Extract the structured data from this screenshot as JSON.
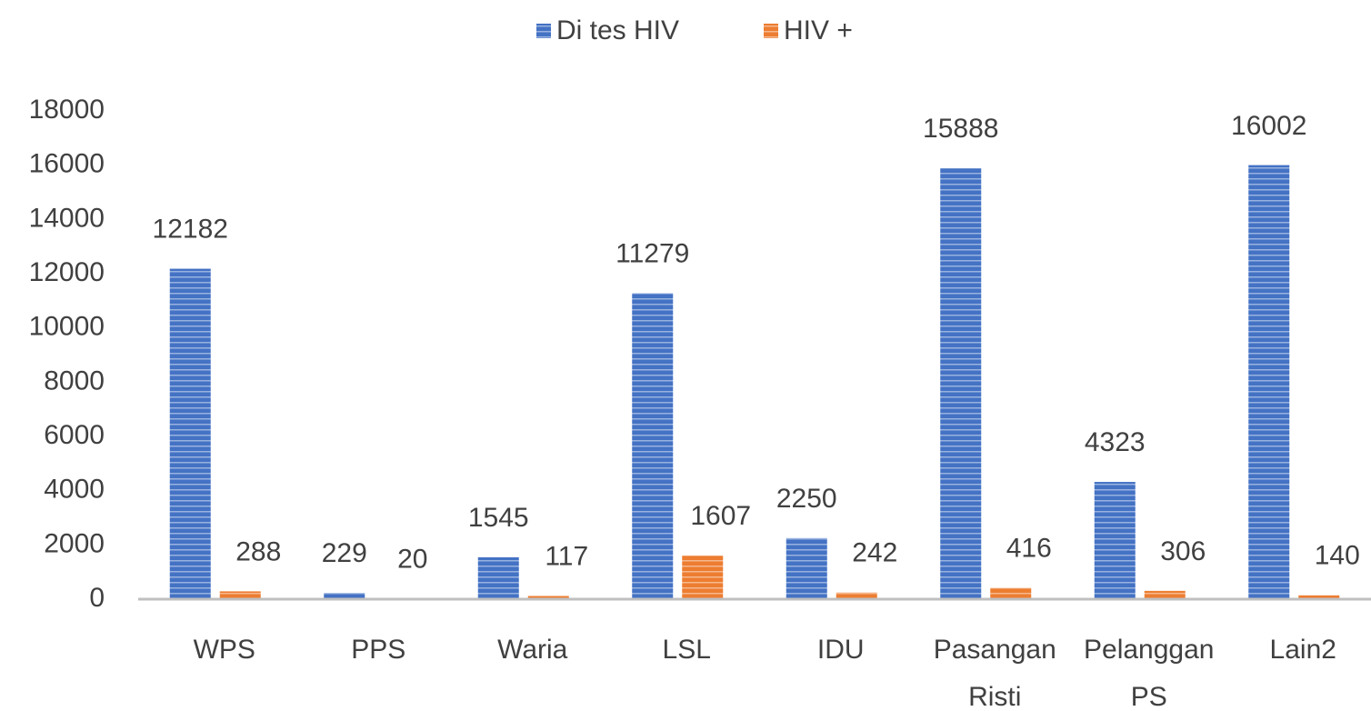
{
  "chart_data": {
    "type": "bar",
    "categories": [
      "WPS",
      "PPS",
      "Waria",
      "LSL",
      "IDU",
      "Pasangan Risti",
      "Pelanggan PS",
      "Lain2"
    ],
    "series": [
      {
        "name": "Di tes HIV",
        "color": "#4472c4",
        "values": [
          12182,
          229,
          1545,
          11279,
          2250,
          15888,
          4323,
          16002
        ]
      },
      {
        "name": "HIV +",
        "color": "#ed7d31",
        "values": [
          288,
          20,
          117,
          1607,
          242,
          416,
          306,
          140
        ]
      }
    ],
    "ylim": [
      0,
      18000
    ],
    "yticks": [
      0,
      2000,
      4000,
      6000,
      8000,
      10000,
      12000,
      14000,
      16000,
      18000
    ],
    "grid": false,
    "legend": "top"
  }
}
